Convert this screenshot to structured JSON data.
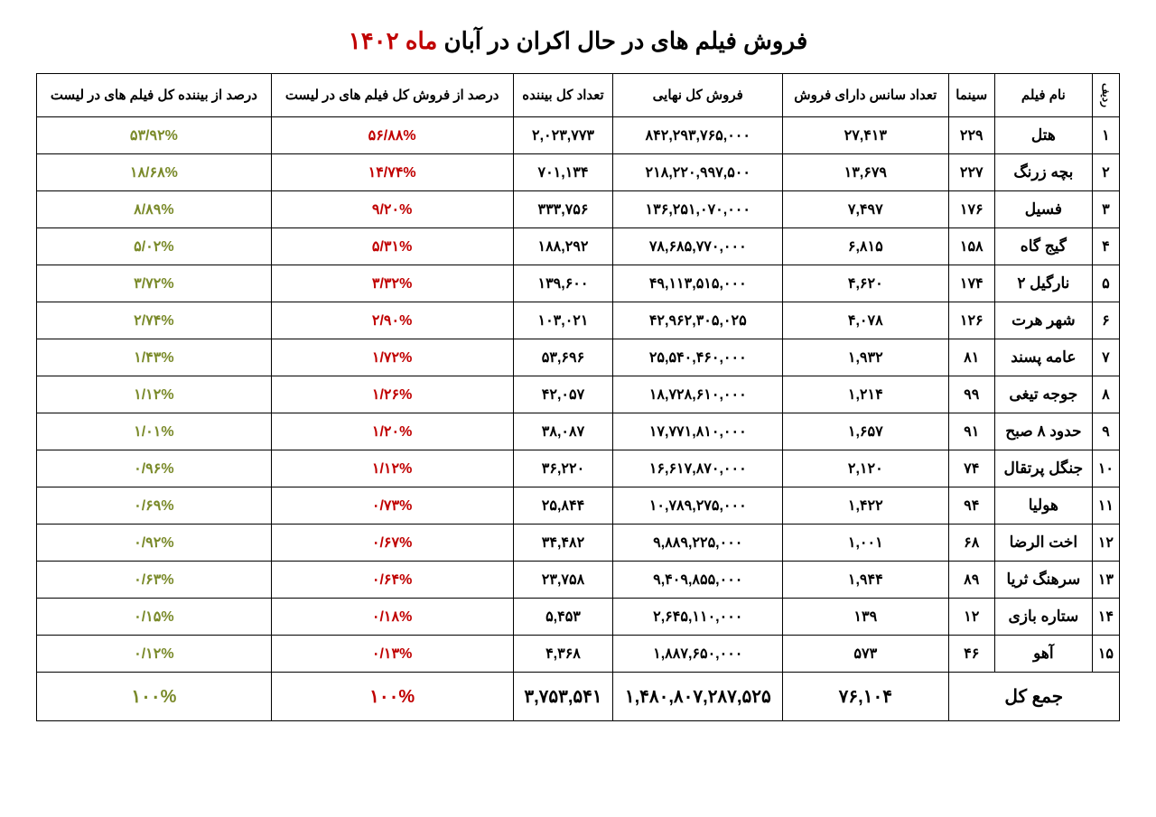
{
  "title": {
    "main": "فروش فیلم های در حال اکران در آبان",
    "accent": "ماه ۱۴۰۲"
  },
  "colors": {
    "accent": "#c00000",
    "pct_sales": "#c00000",
    "pct_viewers": "#7a8a2a",
    "border": "#000000",
    "background": "#ffffff"
  },
  "columns": [
    "ردیف",
    "نام فیلم",
    "سینما",
    "تعداد سانس دارای فروش",
    "فروش کل نهایی",
    "تعداد کل بیننده",
    "درصد از فروش کل فیلم های در لیست",
    "درصد از بیننده کل فیلم های در لیست"
  ],
  "rows": [
    {
      "rank": "۱",
      "movie": "هتل",
      "cinema": "۲۲۹",
      "sessions": "۲۷,۴۱۳",
      "sales": "۸۴۲,۲۹۳,۷۶۵,۰۰۰",
      "viewers": "۲,۰۲۳,۷۷۳",
      "pct_sales": "۵۶/۸۸%",
      "pct_viewers": "۵۳/۹۲%"
    },
    {
      "rank": "۲",
      "movie": "بچه زرنگ",
      "cinema": "۲۲۷",
      "sessions": "۱۳,۶۷۹",
      "sales": "۲۱۸,۲۲۰,۹۹۷,۵۰۰",
      "viewers": "۷۰۱,۱۳۴",
      "pct_sales": "۱۴/۷۴%",
      "pct_viewers": "۱۸/۶۸%"
    },
    {
      "rank": "۳",
      "movie": "فسیل",
      "cinema": "۱۷۶",
      "sessions": "۷,۴۹۷",
      "sales": "۱۳۶,۲۵۱,۰۷۰,۰۰۰",
      "viewers": "۳۳۳,۷۵۶",
      "pct_sales": "۹/۲۰%",
      "pct_viewers": "۸/۸۹%"
    },
    {
      "rank": "۴",
      "movie": "گیج گاه",
      "cinema": "۱۵۸",
      "sessions": "۶,۸۱۵",
      "sales": "۷۸,۶۸۵,۷۷۰,۰۰۰",
      "viewers": "۱۸۸,۲۹۲",
      "pct_sales": "۵/۳۱%",
      "pct_viewers": "۵/۰۲%"
    },
    {
      "rank": "۵",
      "movie": "نارگیل ۲",
      "cinema": "۱۷۴",
      "sessions": "۴,۶۲۰",
      "sales": "۴۹,۱۱۳,۵۱۵,۰۰۰",
      "viewers": "۱۳۹,۶۰۰",
      "pct_sales": "۳/۳۲%",
      "pct_viewers": "۳/۷۲%"
    },
    {
      "rank": "۶",
      "movie": "شهر هرت",
      "cinema": "۱۲۶",
      "sessions": "۴,۰۷۸",
      "sales": "۴۲,۹۶۲,۳۰۵,۰۲۵",
      "viewers": "۱۰۳,۰۲۱",
      "pct_sales": "۲/۹۰%",
      "pct_viewers": "۲/۷۴%"
    },
    {
      "rank": "۷",
      "movie": "عامه پسند",
      "cinema": "۸۱",
      "sessions": "۱,۹۳۲",
      "sales": "۲۵,۵۴۰,۴۶۰,۰۰۰",
      "viewers": "۵۳,۶۹۶",
      "pct_sales": "۱/۷۲%",
      "pct_viewers": "۱/۴۳%"
    },
    {
      "rank": "۸",
      "movie": "جوجه تیغی",
      "cinema": "۹۹",
      "sessions": "۱,۲۱۴",
      "sales": "۱۸,۷۲۸,۶۱۰,۰۰۰",
      "viewers": "۴۲,۰۵۷",
      "pct_sales": "۱/۲۶%",
      "pct_viewers": "۱/۱۲%"
    },
    {
      "rank": "۹",
      "movie": "حدود ۸ صبح",
      "cinema": "۹۱",
      "sessions": "۱,۶۵۷",
      "sales": "۱۷,۷۷۱,۸۱۰,۰۰۰",
      "viewers": "۳۸,۰۸۷",
      "pct_sales": "۱/۲۰%",
      "pct_viewers": "۱/۰۱%"
    },
    {
      "rank": "۱۰",
      "movie": "جنگل پرتقال",
      "cinema": "۷۴",
      "sessions": "۲,۱۲۰",
      "sales": "۱۶,۶۱۷,۸۷۰,۰۰۰",
      "viewers": "۳۶,۲۲۰",
      "pct_sales": "۱/۱۲%",
      "pct_viewers": "۰/۹۶%"
    },
    {
      "rank": "۱۱",
      "movie": "هولیا",
      "cinema": "۹۴",
      "sessions": "۱,۴۲۲",
      "sales": "۱۰,۷۸۹,۲۷۵,۰۰۰",
      "viewers": "۲۵,۸۴۴",
      "pct_sales": "۰/۷۳%",
      "pct_viewers": "۰/۶۹%"
    },
    {
      "rank": "۱۲",
      "movie": "اخت الرضا",
      "cinema": "۶۸",
      "sessions": "۱,۰۰۱",
      "sales": "۹,۸۸۹,۲۲۵,۰۰۰",
      "viewers": "۳۴,۴۸۲",
      "pct_sales": "۰/۶۷%",
      "pct_viewers": "۰/۹۲%"
    },
    {
      "rank": "۱۳",
      "movie": "سرهنگ ثریا",
      "cinema": "۸۹",
      "sessions": "۱,۹۴۴",
      "sales": "۹,۴۰۹,۸۵۵,۰۰۰",
      "viewers": "۲۳,۷۵۸",
      "pct_sales": "۰/۶۴%",
      "pct_viewers": "۰/۶۳%"
    },
    {
      "rank": "۱۴",
      "movie": "ستاره بازی",
      "cinema": "۱۲",
      "sessions": "۱۳۹",
      "sales": "۲,۶۴۵,۱۱۰,۰۰۰",
      "viewers": "۵,۴۵۳",
      "pct_sales": "۰/۱۸%",
      "pct_viewers": "۰/۱۵%"
    },
    {
      "rank": "۱۵",
      "movie": "آهو",
      "cinema": "۴۶",
      "sessions": "۵۷۳",
      "sales": "۱,۸۸۷,۶۵۰,۰۰۰",
      "viewers": "۴,۳۶۸",
      "pct_sales": "۰/۱۳%",
      "pct_viewers": "۰/۱۲%"
    }
  ],
  "totals": {
    "label": "جمع کل",
    "sessions": "۷۶,۱۰۴",
    "sales": "۱,۴۸۰,۸۰۷,۲۸۷,۵۲۵",
    "viewers": "۳,۷۵۳,۵۴۱",
    "pct_sales": "۱۰۰%",
    "pct_viewers": "۱۰۰%"
  }
}
